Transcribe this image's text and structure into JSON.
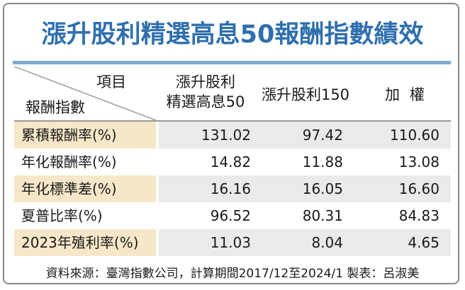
{
  "title": "漲升股利精選高息50報酬指數績效",
  "header": {
    "item_label": "項目",
    "metric_label": "報酬指數",
    "columns": [
      {
        "line1": "漲升股利",
        "line2": "精選高息50"
      },
      {
        "line1": "漲升股利150",
        "line2": ""
      },
      {
        "line1": "加權",
        "line2": ""
      }
    ]
  },
  "rows": [
    {
      "label": "累積報酬率(%)",
      "values": [
        "131.02",
        "97.42",
        "110.60"
      ]
    },
    {
      "label": "年化報酬率(%)",
      "values": [
        "14.82",
        "11.88",
        "13.08"
      ]
    },
    {
      "label": "年化標準差(%)",
      "values": [
        "16.16",
        "16.05",
        "16.60"
      ]
    },
    {
      "label": "夏普比率(%)",
      "values": [
        "96.52",
        "80.31",
        "84.83"
      ]
    },
    {
      "label": "2023年殖利率(%)",
      "values": [
        "11.03",
        "8.04",
        "4.65"
      ]
    }
  ],
  "footer": "資料來源：臺灣指數公司，計算期間2017/12至2024/1 製表：呂淑美",
  "colors": {
    "title": "#2f6fae",
    "label_shade": "#f6e7c8",
    "value_shade": "#eaeaea",
    "rule": "#7fa8cf"
  }
}
